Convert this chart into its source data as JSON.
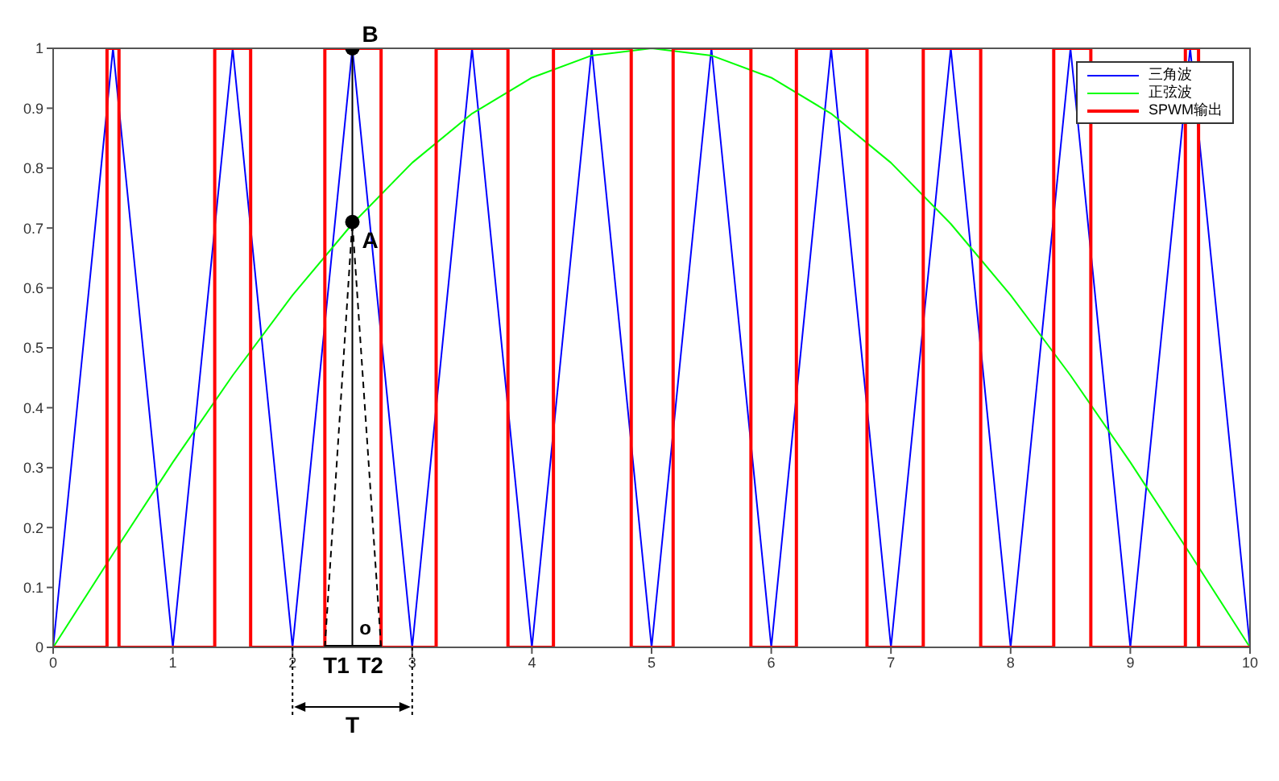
{
  "chart_data": {
    "type": "line",
    "xlim": [
      0,
      10
    ],
    "ylim": [
      0,
      1
    ],
    "xticks": [
      0,
      1,
      2,
      3,
      4,
      5,
      6,
      7,
      8,
      9,
      10
    ],
    "yticks": [
      0,
      0.1,
      0.2,
      0.3,
      0.4,
      0.5,
      0.6,
      0.7,
      0.8,
      0.9,
      1
    ],
    "grid": false,
    "legend": "top right",
    "marker": "none",
    "series": [
      {
        "name": "三角波",
        "color": "#0000ff",
        "x": [
          0,
          0.5,
          1,
          1.5,
          2,
          2.5,
          3,
          3.5,
          4,
          4.5,
          5,
          5.5,
          6,
          6.5,
          7,
          7.5,
          8,
          8.5,
          9,
          9.5,
          10
        ],
        "values": [
          0,
          1,
          0,
          1,
          0,
          1,
          0,
          1,
          0,
          1,
          0,
          1,
          0,
          1,
          0,
          1,
          0,
          1,
          0,
          1,
          0
        ]
      },
      {
        "name": "正弦波",
        "color": "#00ff00",
        "x": [
          0,
          0.5,
          1,
          1.5,
          2,
          2.5,
          3,
          3.5,
          4,
          4.5,
          5,
          5.5,
          6,
          6.5,
          7,
          7.5,
          8,
          8.5,
          9,
          9.5,
          10
        ],
        "values": [
          0,
          0.156,
          0.309,
          0.454,
          0.588,
          0.707,
          0.809,
          0.891,
          0.951,
          0.988,
          1,
          0.988,
          0.951,
          0.891,
          0.809,
          0.707,
          0.588,
          0.454,
          0.309,
          0.156,
          0
        ]
      },
      {
        "name": "SPWM输出",
        "type": "step",
        "color": "#ff0000",
        "x": [
          0,
          0.45,
          0.55,
          1.35,
          1.65,
          2.27,
          2.74,
          3.2,
          3.8,
          4.18,
          4.83,
          5.18,
          5.83,
          6.21,
          6.8,
          7.27,
          7.75,
          8.36,
          8.67,
          9.46,
          9.57,
          10
        ],
        "values": [
          0,
          1,
          0,
          1,
          0,
          1,
          0,
          1,
          0,
          1,
          0,
          1,
          0,
          1,
          0,
          1,
          0,
          1,
          0,
          1,
          0,
          0
        ]
      },
      {
        "color": "#000000",
        "x": [
          2.5,
          2.5
        ],
        "values": [
          0,
          1
        ]
      },
      {
        "color": "#000000",
        "x": [
          2.27,
          2.74
        ],
        "values": [
          0,
          0
        ]
      },
      {
        "color": "#000000",
        "line_style": "dashed",
        "x": [
          2.27,
          2.5,
          2.74
        ],
        "values": [
          0,
          0.71,
          0
        ]
      },
      {
        "type": "scatter",
        "marker": "circle",
        "color": "#000000",
        "x": [
          2.5,
          2.5
        ],
        "values": [
          1,
          0.71
        ]
      }
    ],
    "annotations": [
      {
        "text": "B",
        "x": 2.5,
        "y": 1
      },
      {
        "text": "A",
        "x": 2.5,
        "y": 0.71
      },
      "o",
      "T1",
      "T2",
      "T"
    ]
  }
}
